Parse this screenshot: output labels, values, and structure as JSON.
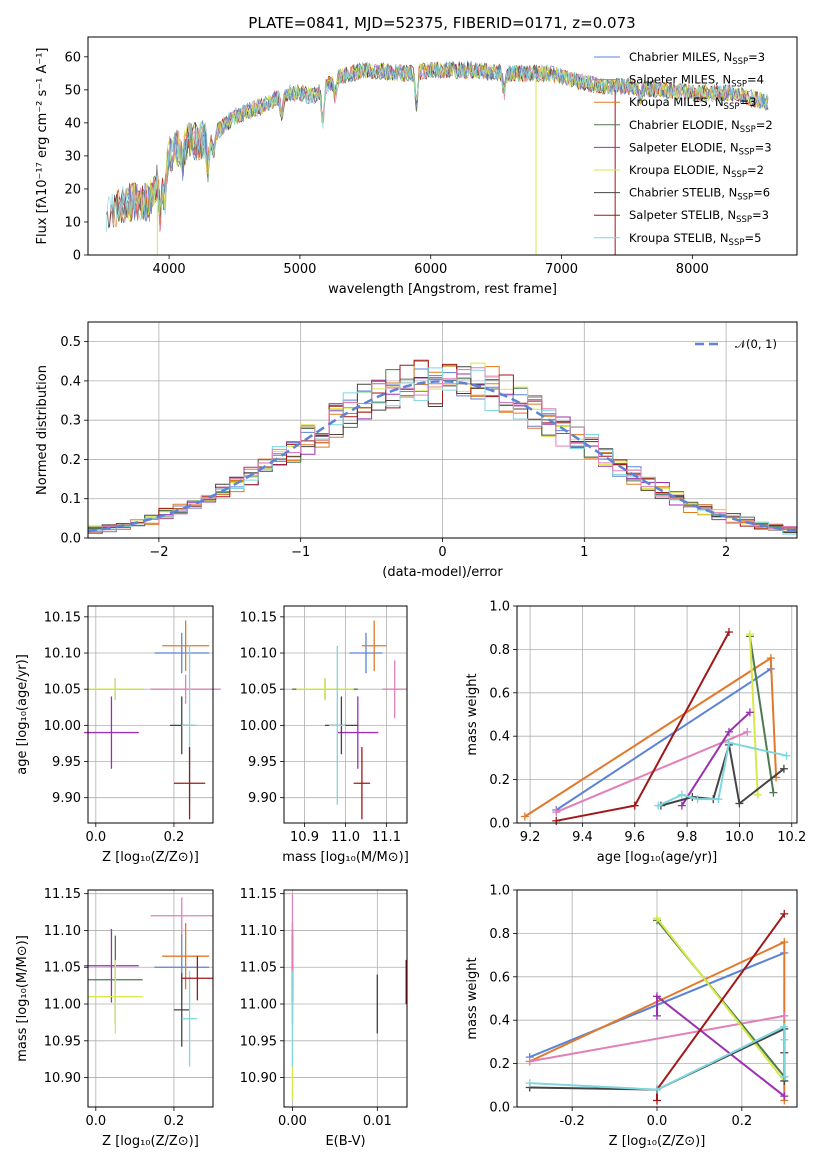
{
  "title": "PLATE=0841, MJD=52375, FIBERID=0171, z=0.073",
  "colors": {
    "c0": "#5b84d6",
    "c1": "#e2782a",
    "c2": "#e07a1c",
    "c3": "#4d7a4d",
    "c4": "#9b30b0",
    "c5": "#d6e84a",
    "c6": "#444444",
    "c7": "#a01818",
    "c8": "#7fd6df",
    "c9": "#e27fb9"
  },
  "chart_data": [
    {
      "type": "line",
      "title": "PLATE=0841, MJD=52375, FIBERID=0171, z=0.073",
      "xlabel": "wavelength [Angstrom, rest frame]",
      "ylabel": "Flux [fλ10⁻¹⁷ erg cm⁻² s⁻¹ A⁻¹]",
      "xlim": [
        3380,
        8800
      ],
      "ylim": [
        0,
        66
      ],
      "xticks": [
        4000,
        5000,
        6000,
        7000,
        8000
      ],
      "yticks": [
        0,
        10,
        20,
        30,
        40,
        50,
        60
      ],
      "legend_position": "top-right",
      "series_names": [
        "Chabrier MILES, N_SSP=3",
        "Salpeter MILES, N_SSP=4",
        "Kroupa MILES, N_SSP=3",
        "Chabrier ELODIE, N_SSP=2",
        "Salpeter ELODIE, N_SSP=3",
        "Kroupa ELODIE, N_SSP=2",
        "Chabrier STELIB, N_SSP=6",
        "Salpeter STELIB, N_SSP=3",
        "Kroupa STELIB, N_SSP=5"
      ],
      "continuum": [
        [
          3500,
          12
        ],
        [
          3700,
          16
        ],
        [
          3850,
          16
        ],
        [
          3900,
          22
        ],
        [
          4000,
          30
        ],
        [
          4100,
          34
        ],
        [
          4300,
          35
        ],
        [
          4500,
          42
        ],
        [
          4700,
          45
        ],
        [
          4900,
          49
        ],
        [
          5000,
          49
        ],
        [
          5100,
          48
        ],
        [
          5300,
          54
        ],
        [
          5500,
          56
        ],
        [
          5800,
          55
        ],
        [
          6000,
          56
        ],
        [
          6300,
          56
        ],
        [
          6600,
          55
        ],
        [
          6900,
          55
        ],
        [
          7100,
          53
        ],
        [
          7300,
          51
        ],
        [
          7500,
          51
        ],
        [
          7800,
          50
        ],
        [
          8000,
          49
        ],
        [
          8300,
          49
        ],
        [
          8600,
          46
        ]
      ]
    },
    {
      "type": "histogram",
      "xlabel": "(data-model)/error",
      "ylabel": "Normed distribution",
      "xlim": [
        -2.5,
        2.5
      ],
      "ylim": [
        0,
        0.55
      ],
      "xticks": [
        -2,
        -1,
        0,
        1,
        2
      ],
      "yticks": [
        0.0,
        0.1,
        0.2,
        0.3,
        0.4,
        0.5
      ],
      "legend": "𝒩(0, 1)",
      "legend_position": "top-right",
      "bin_width": 0.1
    },
    {
      "type": "errorbar",
      "xlabel": "Z [log₁₀(Z/Z⊙)]",
      "ylabel": "age  [log₁₀(age/yr)]",
      "xlim": [
        -0.02,
        0.3
      ],
      "ylim": [
        9.865,
        10.165
      ],
      "xticks": [
        0.0,
        0.2
      ],
      "yticks": [
        9.9,
        9.95,
        10.0,
        10.05,
        10.1,
        10.15
      ],
      "points": [
        {
          "x": 0.22,
          "y": 10.1,
          "xe": 0.07,
          "ye": 0.028,
          "c": "c0"
        },
        {
          "x": 0.23,
          "y": 10.11,
          "xe": 0.06,
          "ye": 0.035,
          "c": "c1"
        },
        {
          "x": 0.05,
          "y": 10.05,
          "xe": 0.07,
          "ye": 0.015,
          "c": "c3"
        },
        {
          "x": 0.05,
          "y": 10.05,
          "xe": 0.07,
          "ye": 0.015,
          "c": "c5"
        },
        {
          "x": 0.04,
          "y": 9.99,
          "xe": 0.07,
          "ye": 0.05,
          "c": "c4"
        },
        {
          "x": 0.23,
          "y": 10.05,
          "xe": 0.09,
          "ye": 0.02,
          "c": "c9"
        },
        {
          "x": 0.22,
          "y": 10.0,
          "xe": 0.03,
          "ye": 0.04,
          "c": "c6"
        },
        {
          "x": 0.24,
          "y": 10.0,
          "xe": 0.02,
          "ye": 0.11,
          "c": "c8"
        },
        {
          "x": 0.24,
          "y": 9.92,
          "xe": 0.04,
          "ye": 0.05,
          "c": "c7"
        }
      ]
    },
    {
      "type": "errorbar",
      "xlabel": "mass [log₁₀(M/M⊙)]",
      "ylabel": "",
      "xlim": [
        10.85,
        11.15
      ],
      "ylim": [
        9.865,
        10.165
      ],
      "xticks": [
        10.9,
        11.0,
        11.1
      ],
      "yticks": [
        9.9,
        9.95,
        10.0,
        10.05,
        10.1,
        10.15
      ],
      "points": [
        {
          "x": 11.05,
          "y": 10.1,
          "xe": 0.04,
          "ye": 0.028,
          "c": "c0"
        },
        {
          "x": 11.07,
          "y": 10.11,
          "xe": 0.03,
          "ye": 0.035,
          "c": "c1"
        },
        {
          "x": 10.95,
          "y": 10.05,
          "xe": 0.08,
          "ye": 0.015,
          "c": "c3"
        },
        {
          "x": 10.95,
          "y": 10.05,
          "xe": 0.07,
          "ye": 0.015,
          "c": "c5"
        },
        {
          "x": 11.03,
          "y": 9.99,
          "xe": 0.05,
          "ye": 0.05,
          "c": "c4"
        },
        {
          "x": 11.12,
          "y": 10.05,
          "xe": 0.03,
          "ye": 0.04,
          "c": "c9"
        },
        {
          "x": 10.99,
          "y": 10.0,
          "xe": 0.04,
          "ye": 0.04,
          "c": "c6"
        },
        {
          "x": 10.98,
          "y": 10.0,
          "xe": 0.02,
          "ye": 0.11,
          "c": "c8"
        },
        {
          "x": 11.04,
          "y": 9.92,
          "xe": 0.02,
          "ye": 0.05,
          "c": "c7"
        }
      ]
    },
    {
      "type": "line",
      "xlabel": "age  [log₁₀(age/yr)]",
      "ylabel": "mass weight",
      "xlim": [
        9.15,
        10.22
      ],
      "ylim": [
        0,
        1.0
      ],
      "xticks": [
        9.2,
        9.4,
        9.6,
        9.8,
        10.0,
        10.2
      ],
      "yticks": [
        0.0,
        0.2,
        0.4,
        0.6,
        0.8,
        1.0
      ],
      "series": [
        {
          "c": "c0",
          "x": [
            9.3,
            10.12
          ],
          "y": [
            0.06,
            0.71
          ]
        },
        {
          "c": "c1",
          "x": [
            9.18,
            10.12,
            10.14
          ],
          "y": [
            0.03,
            0.76,
            0.21
          ]
        },
        {
          "c": "c9",
          "x": [
            9.3,
            10.03
          ],
          "y": [
            0.05,
            0.42
          ]
        },
        {
          "c": "c3",
          "x": [
            10.04,
            10.13
          ],
          "y": [
            0.86,
            0.14
          ]
        },
        {
          "c": "c5",
          "x": [
            10.04,
            10.07
          ],
          "y": [
            0.87,
            0.13
          ]
        },
        {
          "c": "c4",
          "x": [
            9.78,
            9.96,
            10.04
          ],
          "y": [
            0.08,
            0.42,
            0.51
          ]
        },
        {
          "c": "c7",
          "x": [
            9.3,
            9.6,
            9.96
          ],
          "y": [
            0.01,
            0.08,
            0.88
          ]
        },
        {
          "c": "c6",
          "x": [
            9.7,
            9.82,
            9.9,
            9.96,
            10.0,
            10.17
          ],
          "y": [
            0.08,
            0.12,
            0.11,
            0.36,
            0.09,
            0.25
          ]
        },
        {
          "c": "c8",
          "x": [
            9.69,
            9.78,
            9.84,
            9.92,
            9.96,
            10.18
          ],
          "y": [
            0.08,
            0.13,
            0.11,
            0.11,
            0.37,
            0.31
          ]
        }
      ]
    },
    {
      "type": "errorbar",
      "xlabel": "Z [log₁₀(Z/Z⊙)]",
      "ylabel": "mass [log₁₀(M/M⊙)]",
      "xlim": [
        -0.02,
        0.3
      ],
      "ylim": [
        10.86,
        11.155
      ],
      "xticks": [
        0.0,
        0.2
      ],
      "yticks": [
        10.9,
        10.95,
        11.0,
        11.05,
        11.1,
        11.15
      ],
      "points": [
        {
          "x": 0.22,
          "y": 11.05,
          "xe": 0.07,
          "ye": 0.045,
          "c": "c0"
        },
        {
          "x": 0.23,
          "y": 11.065,
          "xe": 0.06,
          "ye": 0.045,
          "c": "c1"
        },
        {
          "x": 0.22,
          "y": 11.12,
          "xe": 0.08,
          "ye": 0.025,
          "c": "c9"
        },
        {
          "x": 0.04,
          "y": 11.052,
          "xe": 0.07,
          "ye": 0.05,
          "c": "c4"
        },
        {
          "x": 0.05,
          "y": 11.033,
          "xe": 0.07,
          "ye": 0.06,
          "c": "c3"
        },
        {
          "x": 0.05,
          "y": 11.01,
          "xe": 0.07,
          "ye": 0.05,
          "c": "c5"
        },
        {
          "x": 0.22,
          "y": 10.992,
          "xe": 0.02,
          "ye": 0.05,
          "c": "c6"
        },
        {
          "x": 0.24,
          "y": 10.98,
          "xe": 0.02,
          "ye": 0.065,
          "c": "c8"
        },
        {
          "x": 0.26,
          "y": 11.035,
          "xe": 0.04,
          "ye": 0.03,
          "c": "c7"
        }
      ]
    },
    {
      "type": "errorbar",
      "xlabel": "E(B-V)",
      "ylabel": "",
      "xlim": [
        -0.001,
        0.0135
      ],
      "ylim": [
        10.86,
        11.155
      ],
      "xticks": [
        0.0,
        0.01
      ],
      "yticks": [
        10.9,
        10.95,
        11.0,
        11.05,
        11.1,
        11.15
      ],
      "points": [
        {
          "x": 0.0,
          "y": 11.05,
          "xe": 0,
          "ye": 0.045,
          "c": "c0"
        },
        {
          "x": 0.0,
          "y": 11.065,
          "xe": 0,
          "ye": 0.045,
          "c": "c1"
        },
        {
          "x": 0.0,
          "y": 11.052,
          "xe": 0,
          "ye": 0.05,
          "c": "c4"
        },
        {
          "x": 0.0,
          "y": 11.033,
          "xe": 0,
          "ye": 0.06,
          "c": "c3"
        },
        {
          "x": 0.0,
          "y": 10.93,
          "xe": 0,
          "ye": 0.06,
          "c": "c5"
        },
        {
          "x": 0.0,
          "y": 11.09,
          "xe": 0,
          "ye": 0.06,
          "c": "c9"
        },
        {
          "x": 0.0,
          "y": 10.98,
          "xe": 0,
          "ye": 0.065,
          "c": "c8"
        },
        {
          "x": 0.01,
          "y": 11.0,
          "xe": 0,
          "ye": 0.04,
          "c": "c6"
        },
        {
          "x": 0.0134,
          "y": 11.03,
          "xe": 0,
          "ye": 0.03,
          "c": "c7"
        }
      ]
    },
    {
      "type": "line",
      "xlabel": "Z [log₁₀(Z/Z⊙)]",
      "ylabel": "mass weight",
      "xlim": [
        -0.33,
        0.33
      ],
      "ylim": [
        0,
        1.0
      ],
      "xticks": [
        -0.2,
        0.0,
        0.2
      ],
      "yticks": [
        0.0,
        0.2,
        0.4,
        0.6,
        0.8,
        1.0
      ],
      "series": [
        {
          "c": "c0",
          "x": [
            -0.3,
            0.3
          ],
          "y": [
            0.23,
            0.71
          ]
        },
        {
          "c": "c1",
          "x": [
            -0.3,
            0.3,
            0.3
          ],
          "y": [
            0.21,
            0.76,
            0.03
          ]
        },
        {
          "c": "c9",
          "x": [
            -0.3,
            0.3
          ],
          "y": [
            0.21,
            0.42
          ]
        },
        {
          "c": "c3",
          "x": [
            0.0,
            0.3
          ],
          "y": [
            0.86,
            0.14
          ]
        },
        {
          "c": "c5",
          "x": [
            0.0,
            0.3
          ],
          "y": [
            0.87,
            0.12
          ]
        },
        {
          "c": "c4",
          "x": [
            0.0,
            0.0,
            0.3
          ],
          "y": [
            0.42,
            0.51,
            0.05
          ]
        },
        {
          "c": "c7",
          "x": [
            0.0,
            0.0,
            0.3
          ],
          "y": [
            0.03,
            0.08,
            0.89
          ]
        },
        {
          "c": "c6",
          "x": [
            -0.3,
            0.0,
            0.3,
            0.3,
            0.3
          ],
          "y": [
            0.09,
            0.08,
            0.36,
            0.25,
            0.12
          ]
        },
        {
          "c": "c8",
          "x": [
            -0.3,
            0.0,
            0.3,
            0.3,
            0.3
          ],
          "y": [
            0.11,
            0.08,
            0.37,
            0.31,
            0.14
          ]
        }
      ]
    }
  ],
  "legend_colors": [
    "c0",
    "c1",
    "c2",
    "c3",
    "c4",
    "c5",
    "c6",
    "c7",
    "c8"
  ]
}
